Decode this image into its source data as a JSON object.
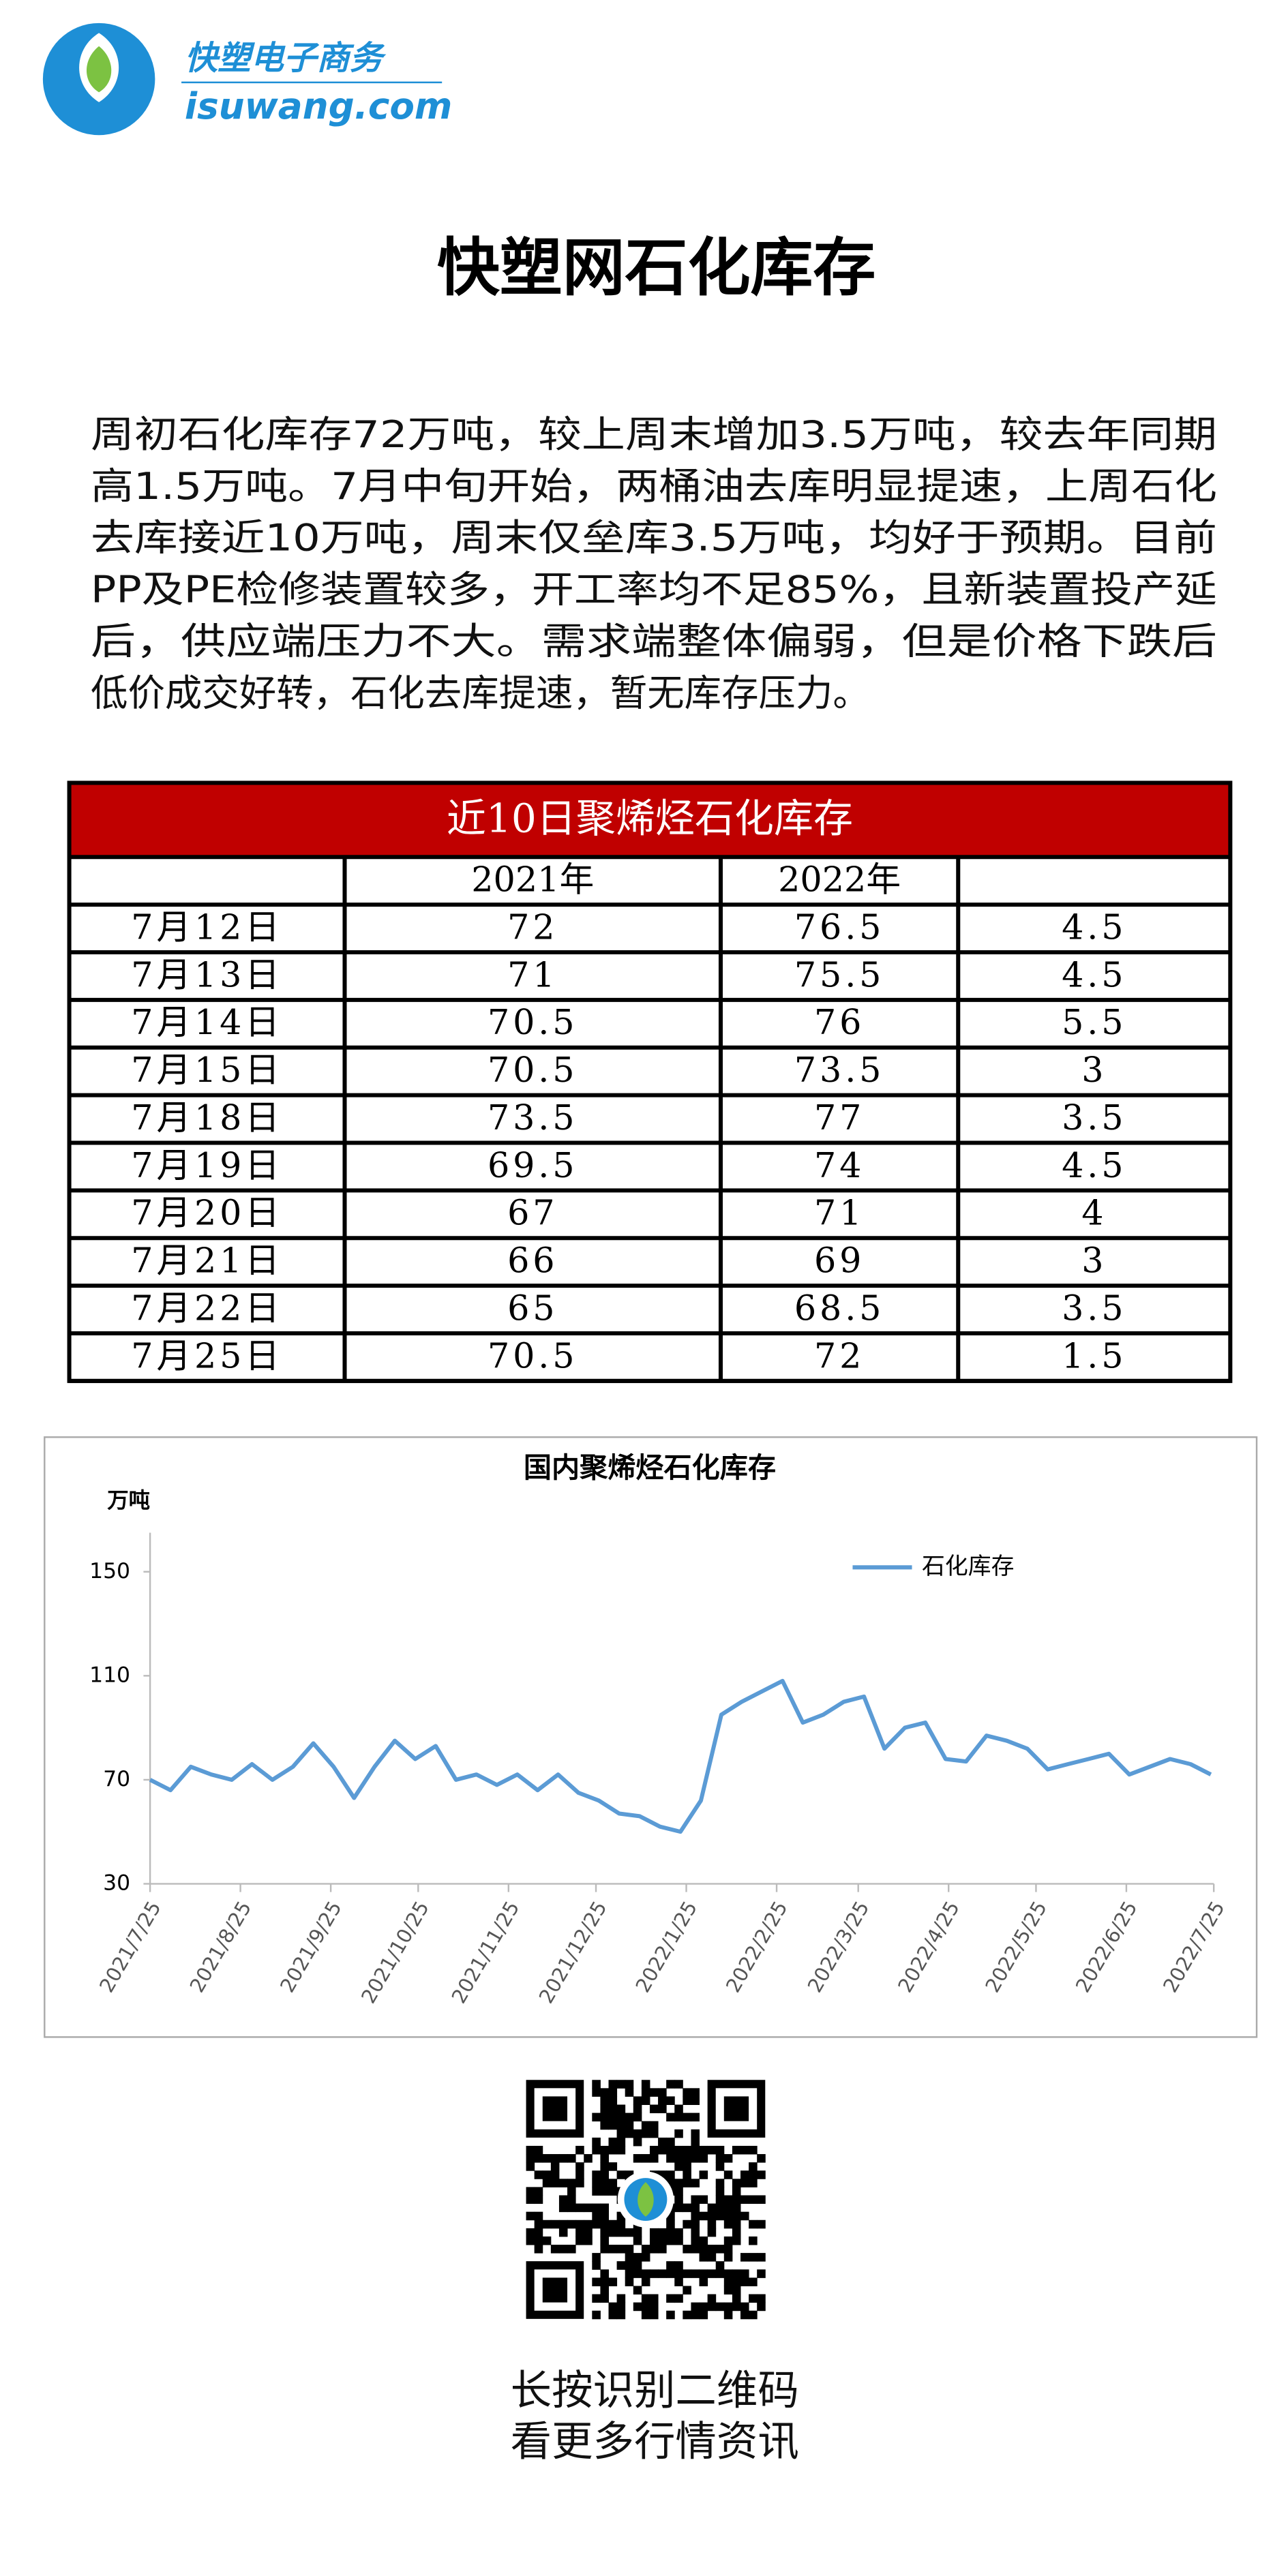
{
  "header": {
    "brand": "快塑电子商务",
    "site": "isuwang.com"
  },
  "title": "快塑网石化库存",
  "body": {
    "lines": [
      "周初石化库存72万吨，较上周末增加3.5万吨，较去年同期",
      "高1.5万吨。7月中旬开始，两桶油去库明显提速，上周石化",
      "去库接近10万吨，周末仅垒库3.5万吨，均好于预期。目前",
      "PP及PE检修装置较多，开工率均不足85%，且新装置投产延",
      "后，供应端压力不大。需求端整体偏弱，但是价格下跌后",
      "低价成交好转，石化去库提速，暂无库存压力。"
    ]
  },
  "table": {
    "title": "近10日聚烯烃石化库存",
    "columns": [
      "2021年",
      "2022年"
    ],
    "rows": [
      [
        "7月12日",
        "72",
        "76.5",
        "4.5"
      ],
      [
        "7月13日",
        "71",
        "75.5",
        "4.5"
      ],
      [
        "7月14日",
        "70.5",
        "76",
        "5.5"
      ],
      [
        "7月15日",
        "70.5",
        "73.5",
        "3"
      ],
      [
        "7月18日",
        "73.5",
        "77",
        "3.5"
      ],
      [
        "7月19日",
        "69.5",
        "74",
        "4.5"
      ],
      [
        "7月20日",
        "67",
        "71",
        "4"
      ],
      [
        "7月21日",
        "66",
        "69",
        "3"
      ],
      [
        "7月22日",
        "65",
        "68.5",
        "3.5"
      ],
      [
        "7月25日",
        "70.5",
        "72",
        "1.5"
      ]
    ]
  },
  "chart_data": {
    "type": "line",
    "title": "国内聚烯烃石化库存",
    "ylabel": "万吨",
    "x": [
      "2021/7/25",
      "2021/8/1",
      "2021/8/8",
      "2021/8/15",
      "2021/8/22",
      "2021/8/29",
      "2021/9/5",
      "2021/9/12",
      "2021/9/19",
      "2021/9/26",
      "2021/10/3",
      "2021/10/10",
      "2021/10/17",
      "2021/10/24",
      "2021/10/31",
      "2021/11/7",
      "2021/11/14",
      "2021/11/21",
      "2021/11/28",
      "2021/12/5",
      "2021/12/12",
      "2021/12/19",
      "2021/12/26",
      "2022/1/2",
      "2022/1/9",
      "2022/1/16",
      "2022/1/23",
      "2022/1/30",
      "2022/2/6",
      "2022/2/13",
      "2022/2/20",
      "2022/2/27",
      "2022/3/6",
      "2022/3/13",
      "2022/3/20",
      "2022/3/27",
      "2022/4/3",
      "2022/4/10",
      "2022/4/17",
      "2022/4/24",
      "2022/5/1",
      "2022/5/8",
      "2022/5/15",
      "2022/5/22",
      "2022/5/29",
      "2022/6/5",
      "2022/6/12",
      "2022/6/19",
      "2022/6/26",
      "2022/7/3",
      "2022/7/10",
      "2022/7/17",
      "2022/7/24"
    ],
    "series": [
      {
        "name": "石化库存",
        "color": "#5b9bd5",
        "values": [
          70,
          66,
          75,
          72,
          70,
          76,
          70,
          75,
          84,
          75,
          63,
          75,
          85,
          78,
          83,
          70,
          72,
          68,
          72,
          66,
          72,
          65,
          62,
          57,
          56,
          52,
          50,
          62,
          95,
          100,
          104,
          108,
          92,
          95,
          100,
          102,
          82,
          90,
          92,
          78,
          77,
          87,
          85,
          82,
          74,
          76,
          78,
          80,
          72,
          75,
          78,
          76,
          72
        ]
      }
    ],
    "xlim": [
      "2021/7/25",
      "2022/7/25"
    ],
    "xticks": [
      "2021/7/25",
      "2021/8/25",
      "2021/9/25",
      "2021/10/25",
      "2021/11/25",
      "2021/12/25",
      "2022/1/25",
      "2022/2/25",
      "2022/3/25",
      "2022/4/25",
      "2022/5/25",
      "2022/6/25",
      "2022/7/25"
    ],
    "ylim": [
      30,
      165
    ],
    "yticks": [
      30,
      70,
      110,
      150
    ],
    "legend": "top-right"
  },
  "footer": {
    "lines": [
      "长按识别二维码",
      "看更多行情资讯"
    ]
  }
}
